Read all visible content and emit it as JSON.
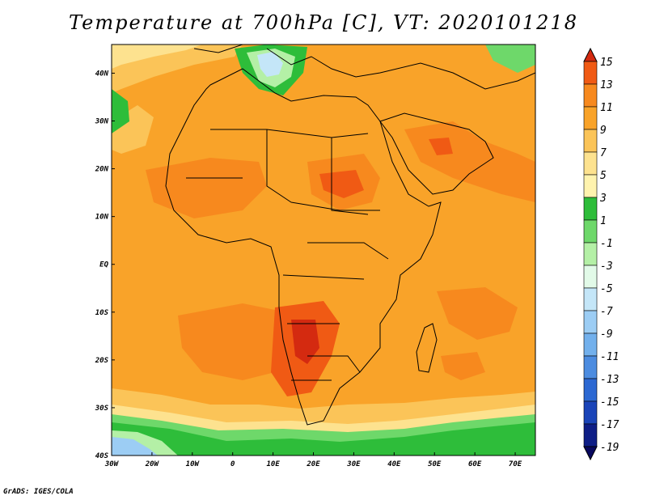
{
  "title": "Temperature at 700hPa [C], VT: 2020101218",
  "credit": "GrADS: IGES/COLA",
  "map": {
    "lon_range": [
      -30,
      75
    ],
    "lat_range": [
      -40,
      46
    ],
    "lon_ticks": [
      {
        "value": -30,
        "label": "30W"
      },
      {
        "value": -20,
        "label": "20W"
      },
      {
        "value": -10,
        "label": "10W"
      },
      {
        "value": 0,
        "label": "0"
      },
      {
        "value": 10,
        "label": "10E"
      },
      {
        "value": 20,
        "label": "20E"
      },
      {
        "value": 30,
        "label": "30E"
      },
      {
        "value": 40,
        "label": "40E"
      },
      {
        "value": 50,
        "label": "50E"
      },
      {
        "value": 60,
        "label": "60E"
      },
      {
        "value": 70,
        "label": "70E"
      }
    ],
    "lat_ticks": [
      {
        "value": 40,
        "label": "40N"
      },
      {
        "value": 30,
        "label": "30N"
      },
      {
        "value": 20,
        "label": "20N"
      },
      {
        "value": 10,
        "label": "10N"
      },
      {
        "value": 0,
        "label": "EQ"
      },
      {
        "value": -10,
        "label": "10S"
      },
      {
        "value": -20,
        "label": "20S"
      },
      {
        "value": -30,
        "label": "30S"
      },
      {
        "value": -40,
        "label": "40S"
      }
    ]
  },
  "colorbar": {
    "labels": [
      "15",
      "13",
      "11",
      "9",
      "7",
      "5",
      "3",
      "1",
      "-1",
      "-3",
      "-5",
      "-7",
      "-9",
      "-11",
      "-13",
      "-15",
      "-17",
      "-19"
    ],
    "colors": [
      "#d42a10",
      "#f05a14",
      "#f7891e",
      "#f9a329",
      "#fbc458",
      "#fde28f",
      "#fff3ae",
      "#2ebd3a",
      "#6ed86a",
      "#b4f0a6",
      "#e2fae8",
      "#c4e6f8",
      "#9ccdf4",
      "#72b0ec",
      "#4c8ce0",
      "#2c68d2",
      "#1a44b8",
      "#0e1e86",
      "#08085e"
    ]
  }
}
